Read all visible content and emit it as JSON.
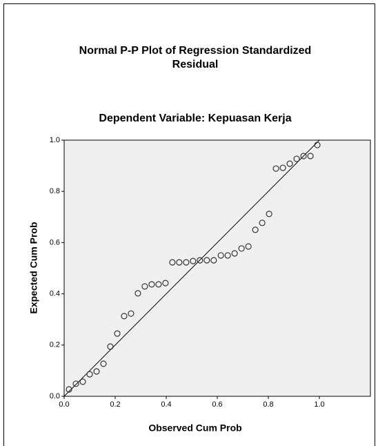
{
  "chart_data": {
    "type": "scatter",
    "title": "Normal P-P Plot of Regression Standardized Residual",
    "subtitle": "Dependent Variable: Kepuasan Kerja",
    "x_label": "Observed Cum Prob",
    "y_label": "Expected Cum Prob",
    "x": [
      0.019,
      0.046,
      0.073,
      0.1,
      0.127,
      0.154,
      0.181,
      0.208,
      0.235,
      0.262,
      0.289,
      0.316,
      0.343,
      0.37,
      0.397,
      0.424,
      0.451,
      0.478,
      0.505,
      0.532,
      0.559,
      0.586,
      0.614,
      0.641,
      0.668,
      0.695,
      0.722,
      0.749,
      0.776,
      0.803,
      0.83,
      0.857,
      0.884,
      0.911,
      0.938,
      0.965,
      0.992
    ],
    "values": [
      0.027,
      0.049,
      0.057,
      0.086,
      0.097,
      0.127,
      0.194,
      0.245,
      0.313,
      0.323,
      0.402,
      0.429,
      0.437,
      0.437,
      0.442,
      0.523,
      0.523,
      0.523,
      0.528,
      0.531,
      0.531,
      0.531,
      0.55,
      0.55,
      0.558,
      0.577,
      0.585,
      0.65,
      0.677,
      0.712,
      0.889,
      0.892,
      0.908,
      0.927,
      0.938,
      0.938,
      0.981
    ],
    "color": "#333333",
    "xlim": [
      0,
      1.2
    ],
    "ylim": [
      0,
      1
    ],
    "xticks": [
      {
        "value": 0,
        "label": "0.0"
      },
      0.2,
      0.4,
      0.6,
      0.8,
      {
        "value": 1,
        "label": "1.0"
      }
    ],
    "yticks": [
      {
        "value": 0,
        "label": "0.0"
      },
      0.2,
      0.4,
      0.6,
      0.8,
      {
        "value": 1,
        "label": "1.0"
      }
    ],
    "grid": false
  }
}
